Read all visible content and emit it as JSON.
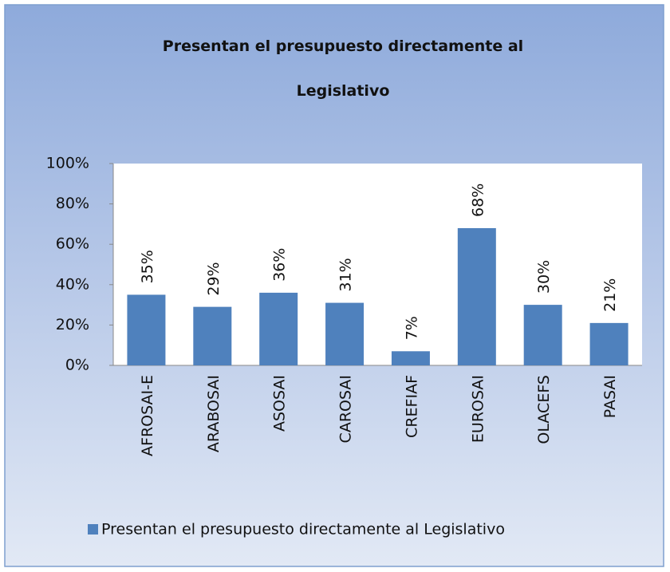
{
  "chart_data": {
    "type": "bar",
    "title": "Presentan el presupuesto directamente al Legislativo",
    "categories": [
      "AFROSAI-E",
      "ARABOSAI",
      "ASOSAI",
      "CAROSAI",
      "CREFIAF",
      "EUROSAI",
      "OLACEFS",
      "PASAI"
    ],
    "series": [
      {
        "name": "Presentan el presupuesto directamente al Legislativo",
        "color": "#4f81bd",
        "values": [
          35,
          29,
          36,
          31,
          7,
          68,
          30,
          21
        ],
        "value_labels": [
          "35%",
          "29%",
          "36%",
          "31%",
          "7%",
          "68%",
          "30%",
          "21%"
        ]
      }
    ],
    "ylim": [
      0,
      100
    ],
    "yticks": [
      {
        "value": 0,
        "label": "0%"
      },
      {
        "value": 20,
        "label": "20%"
      },
      {
        "value": 40,
        "label": "40%"
      },
      {
        "value": 60,
        "label": "60%"
      },
      {
        "value": 80,
        "label": "80%"
      },
      {
        "value": 100,
        "label": "100%"
      }
    ],
    "grid": false,
    "legend": "bottom"
  }
}
